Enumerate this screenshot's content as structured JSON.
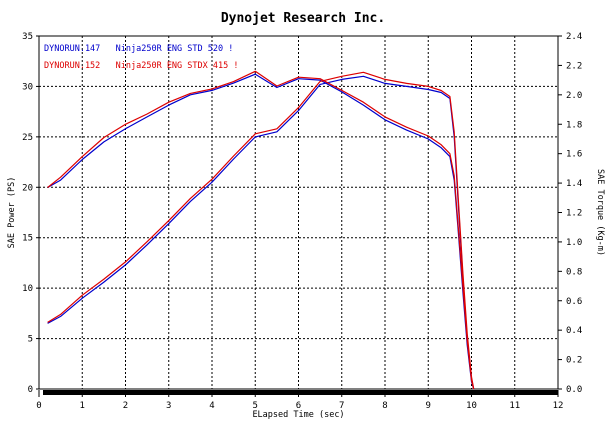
{
  "chart_data": {
    "type": "line",
    "title": "Dynojet  Research  Inc.",
    "xlabel": "ELapsed Time (sec)",
    "ylabel": "SAE Power (PS)",
    "y2label": "SAE Torque (Kg-m)",
    "xlim": [
      0,
      12
    ],
    "ylim": [
      0,
      35
    ],
    "y2lim": [
      0,
      2.4
    ],
    "x_ticks": [
      "0",
      "1",
      "2",
      "3",
      "4",
      "5",
      "6",
      "7",
      "8",
      "9",
      "10",
      "11",
      "12"
    ],
    "y_ticks": [
      "0",
      "5",
      "10",
      "15",
      "20",
      "25",
      "30",
      "35"
    ],
    "y2_ticks": [
      "0.0",
      "0.2",
      "0.4",
      "0.6",
      "0.8",
      "1.0",
      "1.2",
      "1.4",
      "1.6",
      "1.8",
      "2.0",
      "2.2",
      "2.4"
    ],
    "grid": true,
    "legend_position": "top-left",
    "colors": {
      "run147": "#0000cc",
      "run152": "#dd0000",
      "axis_bar": "#000000"
    },
    "series": [
      {
        "name": "DYNORUN.147   Ninja250R ENG STD 520 !",
        "color": "#0000cc",
        "power": {
          "x": [
            0.2,
            0.5,
            1.0,
            1.5,
            2.0,
            2.5,
            3.0,
            3.5,
            4.0,
            4.5,
            5.0,
            5.5,
            6.0,
            6.5,
            7.0,
            7.5,
            8.0,
            8.5,
            9.0,
            9.3,
            9.5,
            9.6,
            9.7,
            9.8,
            9.9,
            10.0,
            10.05
          ],
          "y": [
            6.5,
            7.2,
            9.0,
            10.6,
            12.3,
            14.3,
            16.4,
            18.6,
            20.5,
            22.8,
            25.0,
            25.5,
            27.6,
            30.2,
            30.7,
            31.0,
            30.3,
            30.0,
            29.7,
            29.4,
            28.8,
            25.0,
            18.0,
            11.0,
            5.0,
            1.0,
            0.0
          ]
        },
        "torque": {
          "x": [
            0.2,
            0.5,
            1.0,
            1.5,
            2.0,
            2.5,
            3.0,
            3.5,
            4.0,
            4.5,
            5.0,
            5.5,
            6.0,
            6.5,
            7.0,
            7.5,
            8.0,
            8.5,
            9.0,
            9.3,
            9.5,
            9.6,
            9.7,
            9.8,
            9.9,
            10.0,
            10.05
          ],
          "y": [
            1.37,
            1.42,
            1.56,
            1.68,
            1.77,
            1.85,
            1.93,
            2.0,
            2.03,
            2.08,
            2.14,
            2.05,
            2.11,
            2.1,
            2.02,
            1.93,
            1.83,
            1.76,
            1.7,
            1.64,
            1.58,
            1.42,
            1.05,
            0.66,
            0.3,
            0.05,
            0.0
          ]
        }
      },
      {
        "name": "DYNORUN.152   Ninja250R ENG STDX 415 !",
        "color": "#dd0000",
        "power": {
          "x": [
            0.2,
            0.5,
            1.0,
            1.5,
            2.0,
            2.5,
            3.0,
            3.5,
            4.0,
            4.5,
            5.0,
            5.5,
            6.0,
            6.5,
            7.0,
            7.5,
            8.0,
            8.5,
            9.0,
            9.3,
            9.5,
            9.6,
            9.7,
            9.8,
            9.9,
            10.0,
            10.05
          ],
          "y": [
            6.6,
            7.4,
            9.3,
            10.9,
            12.6,
            14.6,
            16.7,
            18.9,
            20.8,
            23.1,
            25.3,
            25.8,
            27.9,
            30.5,
            31.0,
            31.4,
            30.7,
            30.3,
            30.0,
            29.6,
            29.0,
            25.5,
            18.5,
            11.5,
            5.5,
            1.2,
            0.0
          ]
        },
        "torque": {
          "x": [
            0.2,
            0.5,
            1.0,
            1.5,
            2.0,
            2.5,
            3.0,
            3.5,
            4.0,
            4.5,
            5.0,
            5.5,
            6.0,
            6.5,
            7.0,
            7.5,
            8.0,
            8.5,
            9.0,
            9.3,
            9.5,
            9.6,
            9.7,
            9.8,
            9.9,
            10.0,
            10.05
          ],
          "y": [
            1.37,
            1.44,
            1.58,
            1.71,
            1.8,
            1.87,
            1.95,
            2.01,
            2.04,
            2.09,
            2.16,
            2.06,
            2.12,
            2.11,
            2.03,
            1.95,
            1.85,
            1.78,
            1.72,
            1.66,
            1.6,
            1.45,
            1.08,
            0.7,
            0.33,
            0.06,
            0.0
          ]
        }
      }
    ]
  }
}
